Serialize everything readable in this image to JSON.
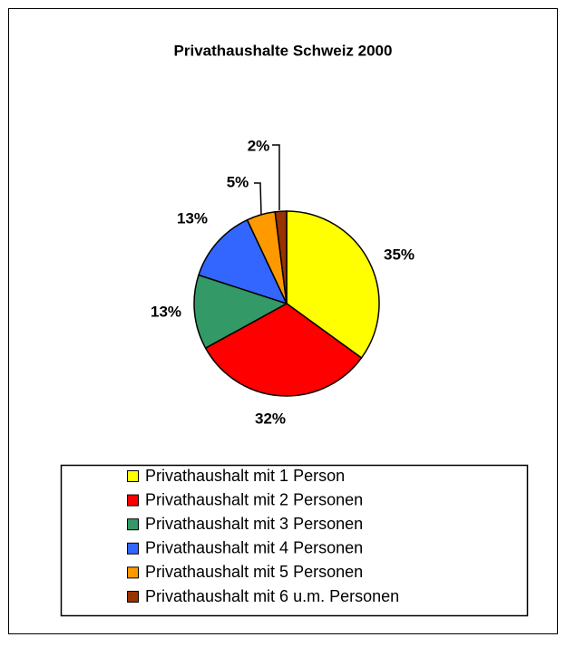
{
  "chart_data": {
    "type": "pie",
    "title": "Privathaushalte Schweiz 2000",
    "categories": [
      "Privathaushalt mit 1 Person",
      "Privathaushalt mit 2 Personen",
      "Privathaushalt mit 3 Personen",
      "Privathaushalt mit 4 Personen",
      "Privathaushalt mit 5 Personen",
      "Privathaushalt mit 6 u.m. Personen"
    ],
    "values": [
      35,
      32,
      13,
      13,
      5,
      2
    ],
    "value_labels": [
      "35%",
      "32%",
      "13%",
      "13%",
      "5%",
      "2%"
    ],
    "colors": [
      "#ffff00",
      "#ff0000",
      "#339966",
      "#3366ff",
      "#ff9900",
      "#993300"
    ],
    "legend": "bottom"
  }
}
